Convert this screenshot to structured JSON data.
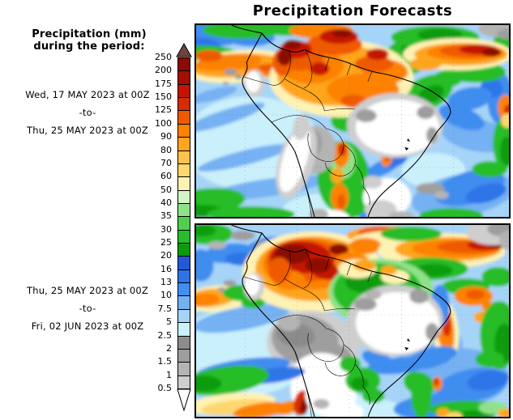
{
  "title": "Precipitation Forecasts",
  "sidebar": {
    "heading_line1": "Precipitation (mm)",
    "heading_line2": "during the period:",
    "periods": [
      {
        "start": "Wed, 17 MAY 2023 at 00Z",
        "separator": "-to-",
        "end": "Thu, 25 MAY 2023 at 00Z"
      },
      {
        "start": "Thu, 25 MAY 2023 at 00Z",
        "separator": "-to-",
        "end": "Fri, 02 JUN 2023 at 00Z"
      }
    ]
  },
  "legend": {
    "tick_labels": [
      "250",
      "200",
      "175",
      "150",
      "125",
      "100",
      "90",
      "80",
      "70",
      "60",
      "50",
      "40",
      "35",
      "30",
      "25",
      "20",
      "16",
      "13",
      "10",
      "7.5",
      "5",
      "2.5",
      "2",
      "1.5",
      "1",
      "0.5"
    ],
    "segment_colors": [
      "#8c0b06",
      "#a30f05",
      "#c41405",
      "#d52d02",
      "#ef5a00",
      "#fc8200",
      "#ffa51e",
      "#ffc34c",
      "#ffd76e",
      "#fef2b3",
      "#d4f3c6",
      "#90e288",
      "#4ed04e",
      "#28bd28",
      "#0a9c0a",
      "#2259d8",
      "#2e74e8",
      "#418df0",
      "#74b1f3",
      "#a6d4f8",
      "#caf0fb",
      "#8b8b8b",
      "#9e9e9e",
      "#b4b4b4",
      "#cecece"
    ],
    "overflow_arrow_color": "#6e453c",
    "underflow_arrow_color": "#ffffff"
  },
  "maps": [
    {
      "name": "precipitation-map-period-1",
      "region": "South America"
    },
    {
      "name": "precipitation-map-period-2",
      "region": "South America"
    }
  ]
}
